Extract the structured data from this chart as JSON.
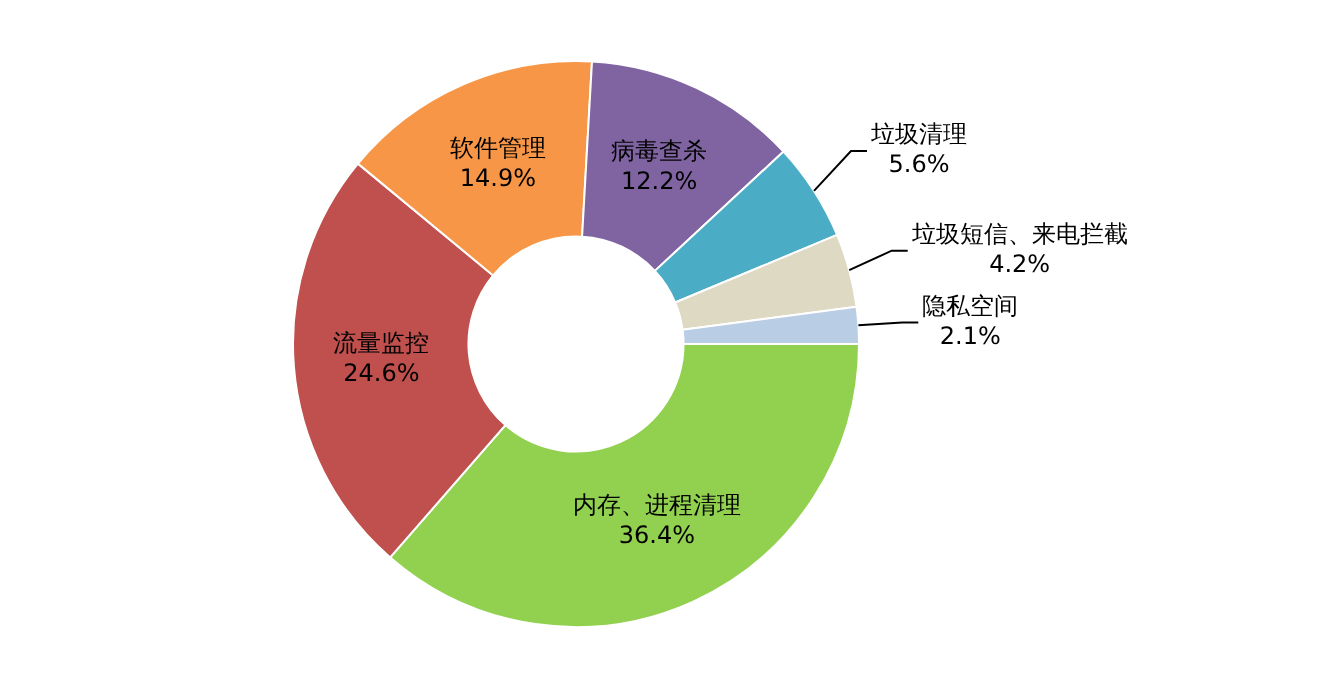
{
  "chart_data": {
    "type": "donut",
    "categories": [
      "内存、进程清理",
      "流量监控",
      "软件管理",
      "病毒查杀",
      "垃圾清理",
      "垃圾短信、来电拦截",
      "隐私空间"
    ],
    "values": [
      36.4,
      24.6,
      14.9,
      12.2,
      5.6,
      4.2,
      2.1
    ],
    "value_labels": [
      "36.4%",
      "24.6%",
      "14.9%",
      "12.2%",
      "5.6%",
      "4.2%",
      "2.1%"
    ],
    "colors": [
      "#92d050",
      "#c0504d",
      "#f79646",
      "#8064a2",
      "#4bacc6",
      "#ddd9c3",
      "#b9cde5"
    ],
    "legend": false
  }
}
